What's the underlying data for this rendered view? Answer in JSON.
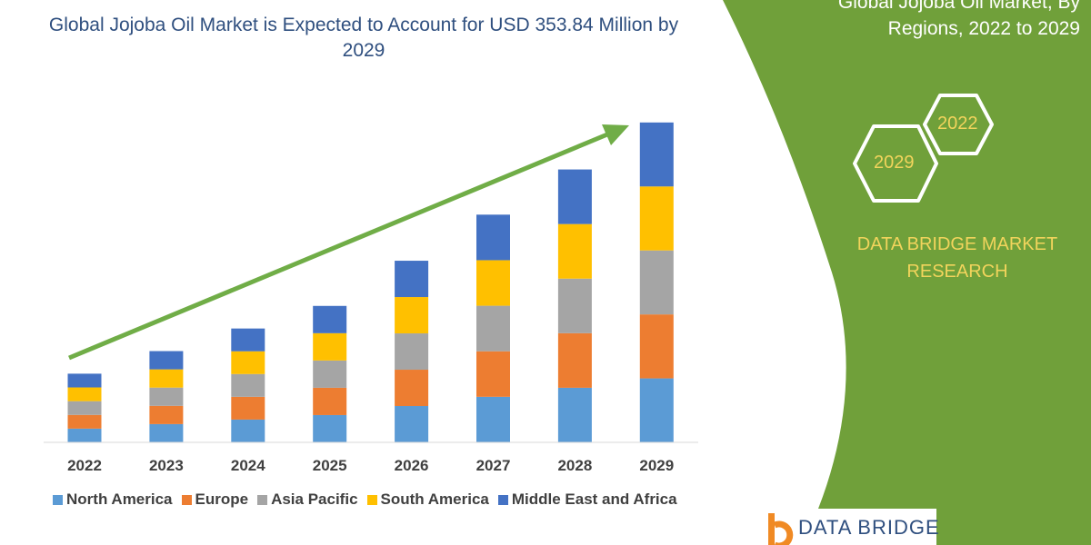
{
  "title": "Global Jojoba Oil Market is Expected to Account for USD 353.84 Million by 2029",
  "side_panel": {
    "title_line1": "Global Jojoba Oil Market, By",
    "title_line2": "Regions, 2022 to 2029",
    "hex_years": [
      "2022",
      "2029"
    ],
    "brand": "DATA BRIDGE MARKET RESEARCH",
    "logo_text": "DATA BRIDGE",
    "background_color": "#70a03a",
    "accent_color": "#f2d45c"
  },
  "chart_data": {
    "type": "bar",
    "stacked": true,
    "title": "Global Jojoba Oil Market is Expected to Account for USD 353.84 Million by 2029",
    "categories": [
      "2022",
      "2023",
      "2024",
      "2025",
      "2026",
      "2027",
      "2028",
      "2029"
    ],
    "series": [
      {
        "name": "North America",
        "color": "#5b9bd5",
        "values": [
          15.2,
          20.2,
          25.2,
          30.2,
          40.2,
          50.4,
          60.4,
          70.8
        ]
      },
      {
        "name": "Europe",
        "color": "#ed7d31",
        "values": [
          15.2,
          20.2,
          25.2,
          30.2,
          40.2,
          50.4,
          60.4,
          70.8
        ]
      },
      {
        "name": "Asia Pacific",
        "color": "#a5a5a5",
        "values": [
          15.2,
          20.2,
          25.2,
          30.2,
          40.2,
          50.4,
          60.4,
          70.8
        ]
      },
      {
        "name": "South America",
        "color": "#ffc000",
        "values": [
          15.2,
          20.2,
          25.2,
          30.2,
          40.2,
          50.4,
          60.4,
          70.8
        ]
      },
      {
        "name": "Middle East and Africa",
        "color": "#4472c4",
        "values": [
          15.2,
          20.2,
          25.2,
          30.2,
          40.2,
          50.4,
          60.4,
          70.8
        ]
      }
    ],
    "xlabel": "",
    "ylabel": "",
    "y_axis_visible": false,
    "grid": false,
    "legend_placement": "bottom",
    "annotation": "upward trend arrow",
    "arrow_color": "#70ad47"
  }
}
